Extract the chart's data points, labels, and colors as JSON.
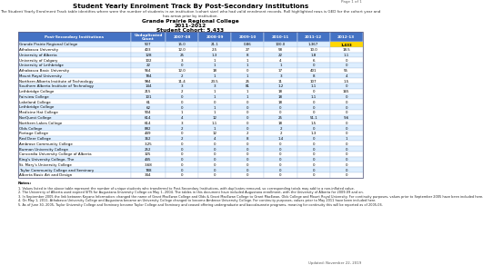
{
  "page_label": "Page 1 of 1",
  "title": "Student Yearly Enrolment Track By Post-Secondary Institutions",
  "subtitle_line1": "The Student Yearly Enrolment Track table identifies where were the number of students in an institution (cohort size) who had valid enrolment records. Roll highlighted rows is GED for the cohort year and",
  "subtitle_line2": "has arrow prior by institution.",
  "filter_label": "Grande Prairie Regional College",
  "year_range": "2011-2012",
  "cohort_label": "Student Cohort: 5,433",
  "col_headers": [
    "Post-Secondary Institutions",
    "Unduplicated\nCount",
    "2007-08",
    "2008-09",
    "2009-10",
    "2010-11",
    "2011-12",
    "2012-13"
  ],
  "highlight_color": "#FFD700",
  "header_bg": "#4472C4",
  "header_fg": "#FFFFFF",
  "row_alt1": "#DDEEFF",
  "row_alt2": "#FFFFFF",
  "rows": [
    [
      "Grande Prairie Regional College",
      "507",
      "15.0",
      "21.1",
      "0.86",
      "100.0",
      "1,367",
      "1,433"
    ],
    [
      "Athabasca University",
      "403",
      "12.0",
      "2.5",
      "27",
      "58",
      "10.0",
      "18.5"
    ],
    [
      "University of Alberta",
      "128",
      "25",
      "1.3",
      "8",
      "22",
      "1.8",
      "1.1"
    ],
    [
      "University of Calgary",
      "102",
      "3",
      "1",
      "1",
      "4",
      "6",
      "0"
    ],
    [
      "University of Lethbridge",
      "22",
      "0",
      "1",
      "1",
      "1",
      "0",
      "0"
    ],
    [
      "Athabasca Basic University",
      "964",
      "12.0",
      "18",
      "0",
      "17",
      "401",
      "55"
    ],
    [
      "Mount Royal University",
      "784",
      "2",
      "1",
      "1",
      "3",
      "8",
      "4"
    ],
    [
      "Northern Alberta Institute of Technology",
      "984",
      "11.4",
      "23.5",
      "25",
      "11",
      "107",
      "1.5"
    ],
    [
      "Southern Alberta Institute of Technology",
      "144",
      "3",
      "3",
      "81",
      "1.2",
      "1.1",
      "0"
    ],
    [
      "Lethbridge College",
      "215",
      "2",
      "1",
      "1",
      "18",
      "0",
      "165"
    ],
    [
      "Fairview College",
      "101",
      "0",
      "1",
      "1",
      "18",
      "1.1",
      "0"
    ],
    [
      "Lakeland College",
      "61",
      "0",
      "0",
      "0",
      "18",
      "0",
      "0"
    ],
    [
      "Lethbridge College",
      "62",
      "0",
      "1",
      "0",
      "0",
      "0",
      "0"
    ],
    [
      "Medicine Hat College",
      "904",
      "1",
      "1",
      "0",
      "0",
      "0",
      "0"
    ],
    [
      "NorQuest College",
      "614",
      "4",
      "12",
      "0",
      "25",
      "51.1",
      "9.6"
    ],
    [
      "Northern Lakes College",
      "614",
      "3",
      "1.1",
      "0",
      "18",
      "1.5",
      "0"
    ],
    [
      "Olds College",
      "882",
      "2",
      "1",
      "0",
      "2",
      "0",
      "0"
    ],
    [
      "Portage College",
      "449",
      "0",
      "12",
      "2",
      "2",
      "1.3",
      "0"
    ],
    [
      "Red Deer College",
      "362",
      "2",
      "4",
      "8",
      "1.4",
      "0",
      "1"
    ],
    [
      "Ambrose Community College",
      "3.25",
      "0",
      "0",
      "0",
      "0",
      "0",
      "0"
    ],
    [
      "Burman University College",
      "252",
      "0",
      "0",
      "0",
      "0",
      "0",
      "0"
    ],
    [
      "Concordia University College of Alberta",
      "325",
      "0",
      "0",
      "0",
      "0",
      "0",
      "0"
    ],
    [
      "King's University College, The",
      "445",
      "0",
      "0",
      "0",
      "0",
      "0",
      "0"
    ],
    [
      "St. Mary's University College",
      "3.68",
      "0",
      "0",
      "0",
      "0",
      "0",
      "0"
    ],
    [
      "Taylor Community College and Seminary",
      "788",
      "0",
      "0",
      "0",
      "0",
      "0",
      "0"
    ],
    [
      "Alberta Basic Art and Design",
      "344",
      "0",
      "0",
      "0",
      "0",
      "0",
      "0"
    ]
  ],
  "notes": [
    "1. Values listed in the above table represent the number of unique students who transferred to Post-Secondary Institutions, with duplicates removed, so corresponding totals may add to a non-inflated value.",
    "2. The University of Alberta used expired SITS for Augustana University College on May 1, 2004. The tables in this document have included Augustana enrollment, with the University of Alberta for 2009-09 and on.",
    "3. In September 2005 the link between Keyano Information: changed the name of Grant MacEwan College and Olds & Grant MacEwan College to Grant MacEwan, Olds College and Mount Royal University. For continuity purposes, values prior to September 2005 have been included here.",
    "4. On May 1, 2011, Athabasca University College and Augustana became an University College changed to become Ambrose University College. For continuity purposes, values prior to May 2011 have been included here.",
    "5. As of June 30, 2005, Taylor University College and Seminary became Taylor College and Seminary and ceased offering undergraduate and baccalaureate programs, meaning for continuity this will be reported as of 2005-06."
  ],
  "updated": "Updated: November 22, 2019"
}
